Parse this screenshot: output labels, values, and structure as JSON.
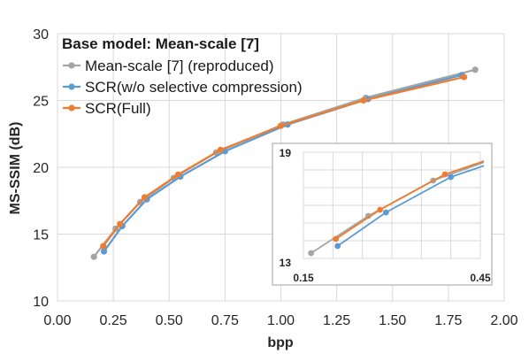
{
  "chart_data": [
    {
      "type": "line",
      "legend_title": "Base model: Mean-scale [7]",
      "xlabel": "bpp",
      "ylabel": "MS-SSIM (dB)",
      "xlim": [
        0,
        2
      ],
      "ylim": [
        10,
        30
      ],
      "xticks": [
        "0.00",
        "0.25",
        "0.50",
        "0.75",
        "1.00",
        "1.25",
        "1.50",
        "1.75",
        "2.00"
      ],
      "yticks": [
        "10",
        "15",
        "20",
        "25",
        "30"
      ],
      "grid": true,
      "legend_position": "top-left",
      "series": [
        {
          "name": "Mean-scale [7] (reproduced)",
          "color": "#a5a5a5",
          "points": [
            [
              0.163,
              13.3
            ],
            [
              0.26,
              15.4
            ],
            [
              0.37,
              17.4
            ],
            [
              0.52,
              19.2
            ],
            [
              0.71,
              21.1
            ],
            [
              1.01,
              23.2
            ],
            [
              1.38,
              25.2
            ],
            [
              1.87,
              27.3
            ]
          ]
        },
        {
          "name": "SCR(w/o selective compression)",
          "color": "#5b9bd5",
          "points": [
            [
              0.208,
              13.7
            ],
            [
              0.29,
              15.6
            ],
            [
              0.4,
              17.6
            ],
            [
              0.55,
              19.3
            ],
            [
              0.75,
              21.2
            ],
            [
              1.03,
              23.2
            ],
            [
              1.39,
              25.1
            ],
            [
              1.81,
              26.9
            ]
          ]
        },
        {
          "name": "SCR(Full)",
          "color": "#ed7d31",
          "points": [
            [
              0.205,
              14.1
            ],
            [
              0.28,
              15.75
            ],
            [
              0.39,
              17.75
            ],
            [
              0.54,
              19.45
            ],
            [
              0.73,
              21.3
            ],
            [
              1.0,
              23.1
            ],
            [
              1.37,
              25.0
            ],
            [
              1.82,
              26.75
            ]
          ]
        }
      ]
    },
    {
      "type": "line",
      "inset": true,
      "xlim": [
        0.15,
        0.45
      ],
      "ylim": [
        13,
        19
      ],
      "xtick_labels": [
        "0.15",
        "0.45"
      ],
      "ytick_labels": [
        "19",
        "13"
      ],
      "grid": true
    }
  ]
}
